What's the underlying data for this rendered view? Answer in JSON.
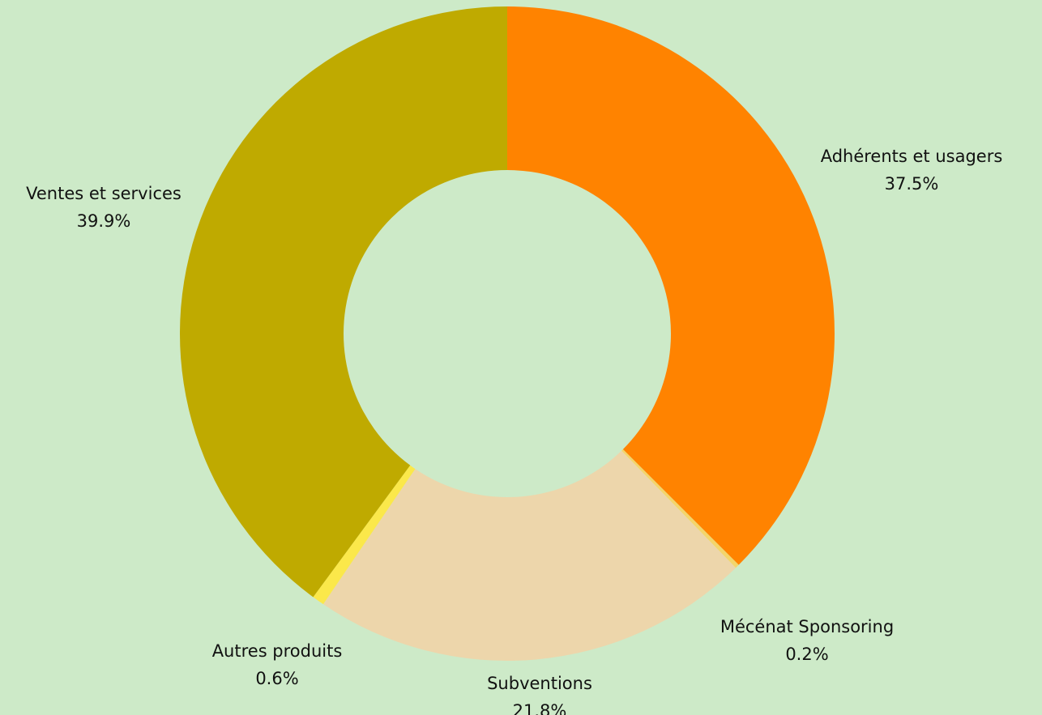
{
  "chart_data": {
    "type": "pie",
    "donut": true,
    "start": "top",
    "direction": "clockwise",
    "background": "#cdeac8",
    "slices": [
      {
        "label": "Adhérents et usagers",
        "value": 37.5,
        "value_label": "37.5%",
        "color": "#ff8300"
      },
      {
        "label": "Mécénat Sponsoring",
        "value": 0.2,
        "value_label": "0.2%",
        "color": "#f4d56a"
      },
      {
        "label": "Subventions",
        "value": 21.8,
        "value_label": "21.8%",
        "color": "#edd6ab"
      },
      {
        "label": "Autres produits",
        "value": 0.6,
        "value_label": "0.6%",
        "color": "#fbe84a"
      },
      {
        "label": "Ventes et services",
        "value": 39.9,
        "value_label": "39.9%",
        "color": "#bfaa00"
      }
    ]
  }
}
